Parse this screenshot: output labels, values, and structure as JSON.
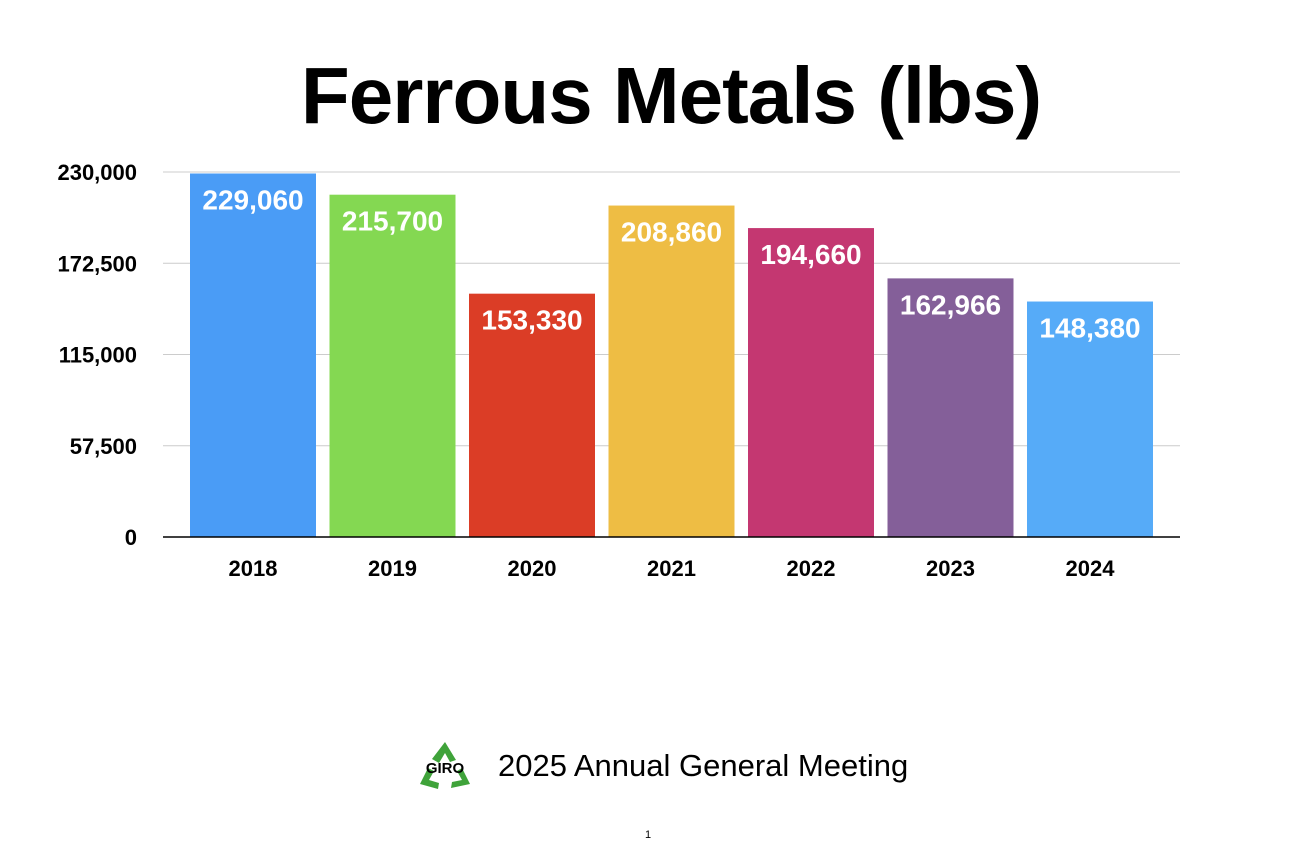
{
  "slide": {
    "title": "Ferrous Metals (lbs)",
    "footer_text": "2025 Annual General Meeting",
    "logo_text": "GIRO",
    "logo_icon": "recycle-icon",
    "page_number": "1"
  },
  "chart_data": {
    "type": "bar",
    "title": "Ferrous Metals (lbs)",
    "xlabel": "",
    "ylabel": "",
    "categories": [
      "2018",
      "2019",
      "2020",
      "2021",
      "2022",
      "2023",
      "2024"
    ],
    "values": [
      229060,
      215700,
      153330,
      208860,
      194660,
      162966,
      148380
    ],
    "data_labels": [
      "229,060",
      "215,700",
      "153,330",
      "208,860",
      "194,660",
      "162,966",
      "148,380"
    ],
    "bar_colors": [
      "#4a9cf6",
      "#84d852",
      "#db3d26",
      "#eebd44",
      "#c43771",
      "#845f99",
      "#56abf8"
    ],
    "ylim": [
      0,
      230000
    ],
    "yticks": [
      0,
      57500,
      115000,
      172500,
      230000
    ],
    "ytick_labels": [
      "0",
      "57,500",
      "115,000",
      "172,500",
      "230,000"
    ],
    "grid": true,
    "legend": false
  }
}
